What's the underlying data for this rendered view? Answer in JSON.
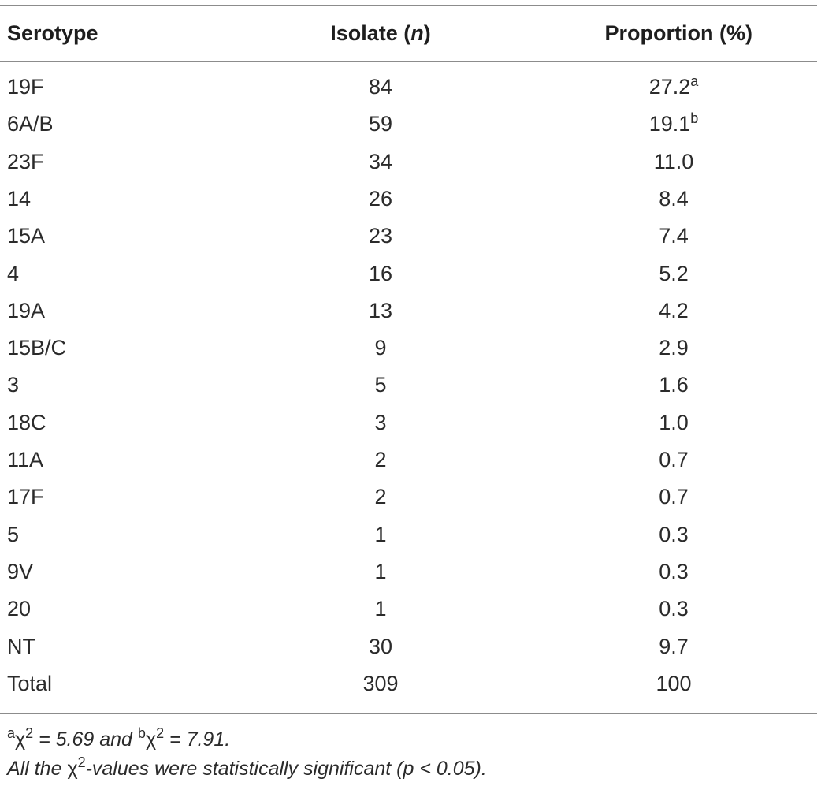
{
  "table": {
    "headers": {
      "serotype": "Serotype",
      "isolate_prefix": "Isolate (",
      "isolate_n": "n",
      "isolate_suffix": ")",
      "proportion": "Proportion (%)"
    },
    "rows": [
      {
        "serotype": "19F",
        "isolate": "84",
        "proportion": "27.2",
        "sup": "a"
      },
      {
        "serotype": "6A/B",
        "isolate": "59",
        "proportion": "19.1",
        "sup": "b"
      },
      {
        "serotype": "23F",
        "isolate": "34",
        "proportion": "11.0",
        "sup": ""
      },
      {
        "serotype": "14",
        "isolate": "26",
        "proportion": "8.4",
        "sup": ""
      },
      {
        "serotype": "15A",
        "isolate": "23",
        "proportion": "7.4",
        "sup": ""
      },
      {
        "serotype": "4",
        "isolate": "16",
        "proportion": "5.2",
        "sup": ""
      },
      {
        "serotype": "19A",
        "isolate": "13",
        "proportion": "4.2",
        "sup": ""
      },
      {
        "serotype": "15B/C",
        "isolate": "9",
        "proportion": "2.9",
        "sup": ""
      },
      {
        "serotype": "3",
        "isolate": "5",
        "proportion": "1.6",
        "sup": ""
      },
      {
        "serotype": "18C",
        "isolate": "3",
        "proportion": "1.0",
        "sup": ""
      },
      {
        "serotype": "11A",
        "isolate": "2",
        "proportion": "0.7",
        "sup": ""
      },
      {
        "serotype": "17F",
        "isolate": "2",
        "proportion": "0.7",
        "sup": ""
      },
      {
        "serotype": "5",
        "isolate": "1",
        "proportion": "0.3",
        "sup": ""
      },
      {
        "serotype": "9V",
        "isolate": "1",
        "proportion": "0.3",
        "sup": ""
      },
      {
        "serotype": "20",
        "isolate": "1",
        "proportion": "0.3",
        "sup": ""
      },
      {
        "serotype": "NT",
        "isolate": "30",
        "proportion": "9.7",
        "sup": ""
      },
      {
        "serotype": "Total",
        "isolate": "309",
        "proportion": "100",
        "sup": ""
      }
    ]
  },
  "footnotes": {
    "line1": {
      "sup_a": "a",
      "chi_a": "χ",
      "sq_a": "2",
      "text_a": " = 5.69 and ",
      "sup_b": "b",
      "chi_b": "χ",
      "sq_b": "2",
      "text_b": " = 7.91."
    },
    "line2": {
      "pre": "All the ",
      "chi": "χ",
      "sq": "2",
      "post": "-values were statistically significant (p < 0.05)."
    }
  }
}
